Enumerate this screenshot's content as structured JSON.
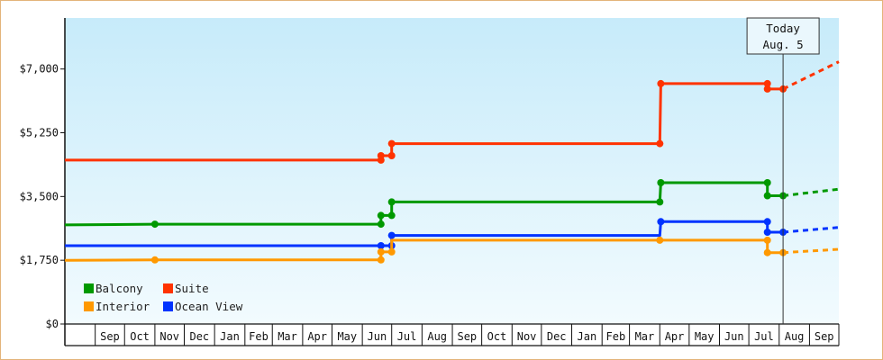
{
  "chart_data": {
    "type": "line",
    "title": "",
    "xlabel": "",
    "ylabel": "",
    "ylim": [
      0,
      8400
    ],
    "y_ticks": [
      {
        "value": 0,
        "label": "$0"
      },
      {
        "value": 1750,
        "label": "$1,750"
      },
      {
        "value": 3500,
        "label": "$3,500"
      },
      {
        "value": 5250,
        "label": "$5,250"
      },
      {
        "value": 7000,
        "label": "$7,000"
      }
    ],
    "x_range": [
      "2013-08-01",
      "2015-10-01"
    ],
    "months": [
      "Sep",
      "Oct",
      "Nov",
      "Dec",
      "Jan",
      "Feb",
      "Mar",
      "Apr",
      "May",
      "Jun",
      "Jul",
      "Aug",
      "Sep",
      "Oct",
      "Nov",
      "Dec",
      "Jan",
      "Feb",
      "Mar",
      "Apr",
      "May",
      "Jun",
      "Jul",
      "Aug",
      "Sep"
    ],
    "month_starts": [
      "2013-09-01",
      "2013-10-01",
      "2013-11-01",
      "2013-12-01",
      "2014-01-01",
      "2014-02-01",
      "2014-03-01",
      "2014-04-01",
      "2014-05-01",
      "2014-06-01",
      "2014-07-01",
      "2014-08-01",
      "2014-09-01",
      "2014-10-01",
      "2014-11-01",
      "2014-12-01",
      "2015-01-01",
      "2015-02-01",
      "2015-03-01",
      "2015-04-01",
      "2015-05-01",
      "2015-06-01",
      "2015-07-01",
      "2015-08-01",
      "2015-09-01"
    ],
    "grid": false,
    "legend_position": "bottom-left",
    "today": {
      "line1": "Today",
      "line2": "Aug. 5",
      "date": "2015-08-05"
    },
    "series": [
      {
        "name": "Suite",
        "color": "#ff3300",
        "points": [
          [
            "2013-08-01",
            4500
          ],
          [
            "2014-06-20",
            4500
          ],
          [
            "2014-06-20",
            4620
          ],
          [
            "2014-07-01",
            4620
          ],
          [
            "2014-07-01",
            4950
          ],
          [
            "2015-04-01",
            4950
          ],
          [
            "2015-04-02",
            6600
          ],
          [
            "2015-07-20",
            6600
          ],
          [
            "2015-07-20",
            6450
          ],
          [
            "2015-08-05",
            6450
          ]
        ],
        "markers": [
          [
            "2014-06-20",
            4500
          ],
          [
            "2014-06-20",
            4620
          ],
          [
            "2014-07-01",
            4620
          ],
          [
            "2014-07-01",
            4950
          ],
          [
            "2015-04-01",
            4950
          ],
          [
            "2015-04-02",
            6600
          ],
          [
            "2015-07-20",
            6600
          ],
          [
            "2015-07-20",
            6450
          ],
          [
            "2015-08-05",
            6450
          ]
        ],
        "forecast": [
          [
            "2015-08-05",
            6450
          ],
          [
            "2015-10-01",
            7200
          ]
        ]
      },
      {
        "name": "Balcony",
        "color": "#009900",
        "points": [
          [
            "2013-08-01",
            2720
          ],
          [
            "2013-11-01",
            2740
          ],
          [
            "2014-06-20",
            2740
          ],
          [
            "2014-06-20",
            2980
          ],
          [
            "2014-07-01",
            2980
          ],
          [
            "2014-07-01",
            3350
          ],
          [
            "2015-04-01",
            3350
          ],
          [
            "2015-04-02",
            3880
          ],
          [
            "2015-07-20",
            3880
          ],
          [
            "2015-07-20",
            3520
          ],
          [
            "2015-08-05",
            3520
          ]
        ],
        "markers": [
          [
            "2013-11-01",
            2740
          ],
          [
            "2014-06-20",
            2740
          ],
          [
            "2014-06-20",
            2980
          ],
          [
            "2014-07-01",
            2980
          ],
          [
            "2014-07-01",
            3350
          ],
          [
            "2015-04-01",
            3350
          ],
          [
            "2015-04-02",
            3880
          ],
          [
            "2015-07-20",
            3880
          ],
          [
            "2015-07-20",
            3520
          ],
          [
            "2015-08-05",
            3520
          ]
        ],
        "forecast": [
          [
            "2015-08-05",
            3520
          ],
          [
            "2015-10-01",
            3700
          ]
        ]
      },
      {
        "name": "Ocean View",
        "color": "#0033ff",
        "points": [
          [
            "2013-08-01",
            2150
          ],
          [
            "2014-06-20",
            2150
          ],
          [
            "2014-07-01",
            2150
          ],
          [
            "2014-07-01",
            2430
          ],
          [
            "2015-04-01",
            2430
          ],
          [
            "2015-04-02",
            2810
          ],
          [
            "2015-07-20",
            2810
          ],
          [
            "2015-07-20",
            2520
          ],
          [
            "2015-08-05",
            2520
          ]
        ],
        "markers": [
          [
            "2014-06-20",
            2150
          ],
          [
            "2014-07-01",
            2150
          ],
          [
            "2014-07-01",
            2430
          ],
          [
            "2015-04-02",
            2810
          ],
          [
            "2015-07-20",
            2810
          ],
          [
            "2015-07-20",
            2520
          ],
          [
            "2015-08-05",
            2520
          ]
        ],
        "forecast": [
          [
            "2015-08-05",
            2520
          ],
          [
            "2015-10-01",
            2650
          ]
        ]
      },
      {
        "name": "Interior",
        "color": "#ff9900",
        "points": [
          [
            "2013-08-01",
            1750
          ],
          [
            "2013-11-01",
            1760
          ],
          [
            "2014-06-20",
            1760
          ],
          [
            "2014-06-20",
            1980
          ],
          [
            "2014-07-01",
            1980
          ],
          [
            "2014-07-01",
            2300
          ],
          [
            "2015-04-01",
            2300
          ],
          [
            "2015-07-20",
            2300
          ],
          [
            "2015-07-20",
            1960
          ],
          [
            "2015-08-05",
            1960
          ]
        ],
        "markers": [
          [
            "2013-11-01",
            1760
          ],
          [
            "2014-06-20",
            1760
          ],
          [
            "2014-06-20",
            1980
          ],
          [
            "2014-07-01",
            1980
          ],
          [
            "2015-04-01",
            2300
          ],
          [
            "2015-07-20",
            2300
          ],
          [
            "2015-07-20",
            1960
          ],
          [
            "2015-08-05",
            1960
          ]
        ],
        "forecast": [
          [
            "2015-08-05",
            1960
          ],
          [
            "2015-10-01",
            2050
          ]
        ]
      }
    ],
    "legend": [
      {
        "name": "Balcony",
        "color": "#009900"
      },
      {
        "name": "Suite",
        "color": "#ff3300"
      },
      {
        "name": "Interior",
        "color": "#ff9900"
      },
      {
        "name": "Ocean View",
        "color": "#0033ff"
      }
    ]
  }
}
